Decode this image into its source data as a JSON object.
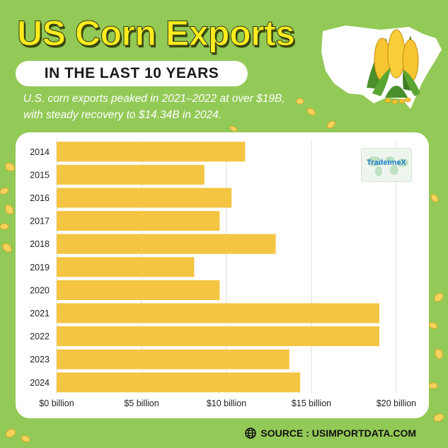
{
  "header": {
    "title": "US Corn Exports",
    "subtitle": "IN THE LAST 10 YEARS",
    "description": "U.S. corn exports peaked in 2021–2022 at over $19B, with steady recovery to $14.34B in 2024."
  },
  "logo": {
    "text": "TradeImeX"
  },
  "source": {
    "text": "SOURCE : USIMPORTDATA.COM",
    "icon": "globe-icon"
  },
  "colors": {
    "background": "#93c957",
    "bar": "#f4c542",
    "title": "#ffec1f",
    "card": "#ffffff"
  },
  "chart_data": {
    "type": "bar",
    "orientation": "horizontal",
    "title": "",
    "xlabel": "",
    "ylabel": "",
    "categories": [
      "2014",
      "2015",
      "2016",
      "2017",
      "2018",
      "2019",
      "2020",
      "2021",
      "2022",
      "2023",
      "2024"
    ],
    "values": [
      11.1,
      8.7,
      10.3,
      9.6,
      12.9,
      8.1,
      9.6,
      19.0,
      19.0,
      13.7,
      14.34
    ],
    "xlim": [
      0,
      20
    ],
    "x_ticks": [
      0,
      5,
      10,
      15,
      20
    ],
    "x_tick_labels": [
      "$0 billion",
      "$5 billion",
      "$10 billion",
      "$15 billion",
      "$20 billion"
    ],
    "grid": true,
    "legend": "none"
  }
}
